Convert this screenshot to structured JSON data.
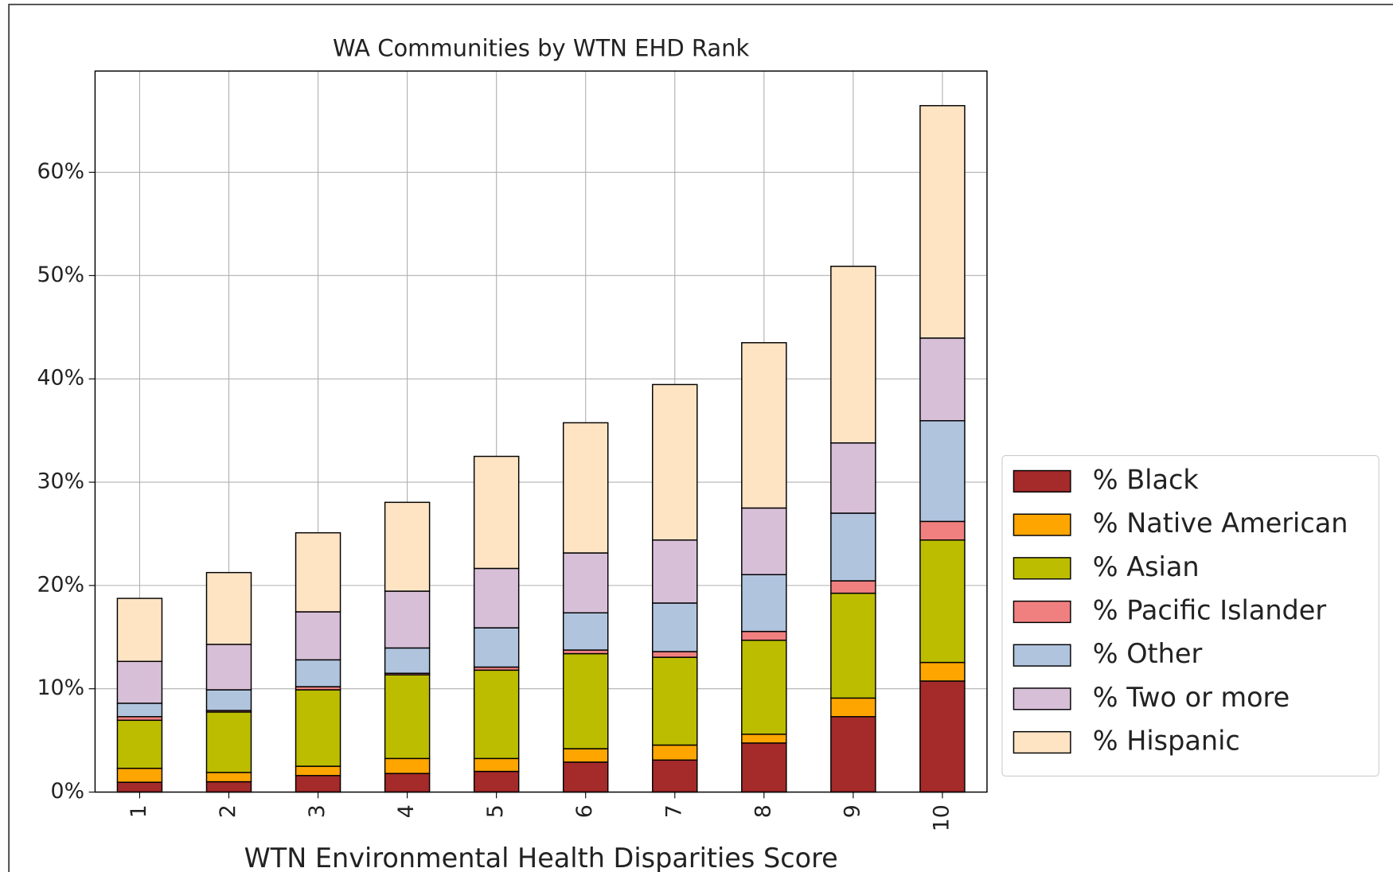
{
  "chart_data": {
    "type": "stacked_bar",
    "title": "WA Communities by WTN EHD Rank",
    "x_label": "WTN Environmental Health Disparities Score",
    "categories": [
      "1",
      "2",
      "3",
      "4",
      "5",
      "6",
      "7",
      "8",
      "9",
      "10"
    ],
    "series": [
      {
        "name": "% Black",
        "color": "#a52a2a",
        "values": [
          0.95,
          1.0,
          1.6,
          1.8,
          2.0,
          2.9,
          3.1,
          4.75,
          7.3,
          10.75
        ]
      },
      {
        "name": "% Native American",
        "color": "#ffa500",
        "values": [
          1.35,
          0.9,
          0.9,
          1.45,
          1.25,
          1.3,
          1.45,
          0.85,
          1.8,
          1.8
        ]
      },
      {
        "name": "% Asian",
        "color": "#bdbd00",
        "values": [
          4.65,
          5.85,
          7.4,
          8.1,
          8.55,
          9.2,
          8.5,
          9.1,
          10.15,
          11.85
        ]
      },
      {
        "name": "% Pacific Islander",
        "color": "#f08080",
        "values": [
          0.35,
          0.15,
          0.3,
          0.15,
          0.3,
          0.35,
          0.55,
          0.85,
          1.2,
          1.8
        ]
      },
      {
        "name": "% Other",
        "color": "#b0c4de",
        "values": [
          1.3,
          2.0,
          2.6,
          2.45,
          3.8,
          3.6,
          4.7,
          5.5,
          6.55,
          9.75
        ]
      },
      {
        "name": "% Two or more",
        "color": "#d8bfd8",
        "values": [
          4.05,
          4.4,
          4.65,
          5.5,
          5.75,
          5.8,
          6.1,
          6.45,
          6.8,
          8.0
        ]
      },
      {
        "name": "% Hispanic",
        "color": "#ffe4c4",
        "values": [
          6.1,
          6.95,
          7.65,
          8.6,
          10.85,
          12.6,
          15.05,
          16.0,
          17.1,
          22.5
        ]
      }
    ],
    "ylim": [
      0,
      69.8
    ],
    "yticks": [
      {
        "value": 0,
        "label": "0%"
      },
      {
        "value": 10,
        "label": "10%"
      },
      {
        "value": 20,
        "label": "20%"
      },
      {
        "value": 30,
        "label": "30%"
      },
      {
        "value": 40,
        "label": "40%"
      },
      {
        "value": 50,
        "label": "50%"
      },
      {
        "value": 60,
        "label": "60%"
      }
    ],
    "grid": true,
    "legend": "lower right"
  }
}
